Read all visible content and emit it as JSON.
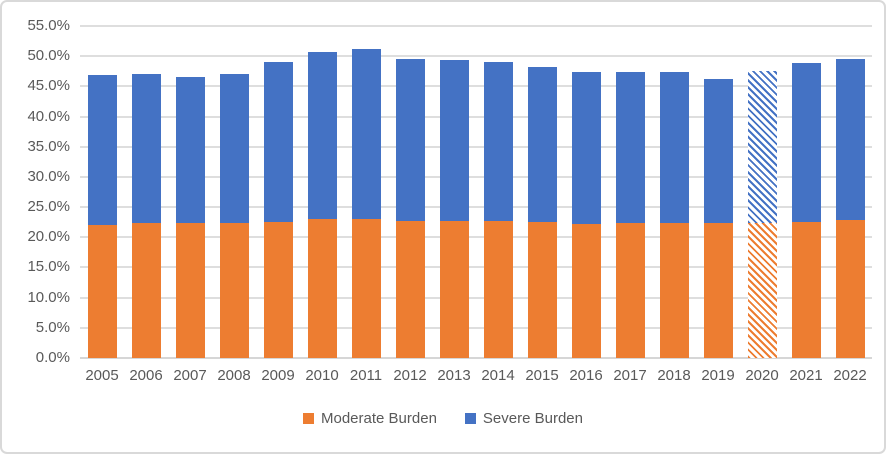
{
  "chart_data": {
    "type": "bar",
    "stacked": true,
    "title": "",
    "xlabel": "",
    "ylabel": "",
    "ylim": [
      0,
      55
    ],
    "y_tick_step": 5,
    "y_tick_labels": [
      "0.0%",
      "5.0%",
      "10.0%",
      "15.0%",
      "20.0%",
      "25.0%",
      "30.0%",
      "35.0%",
      "40.0%",
      "45.0%",
      "50.0%",
      "55.0%"
    ],
    "grid": true,
    "legend_position": "bottom",
    "categories": [
      "2005",
      "2006",
      "2007",
      "2008",
      "2009",
      "2010",
      "2011",
      "2012",
      "2013",
      "2014",
      "2015",
      "2016",
      "2017",
      "2018",
      "2019",
      "2020",
      "2021",
      "2022"
    ],
    "series": [
      {
        "name": "Moderate Burden",
        "color": "#ED7D31",
        "values": [
          22.1,
          22.3,
          22.4,
          22.4,
          22.6,
          23.0,
          23.1,
          22.7,
          22.7,
          22.7,
          22.6,
          22.2,
          22.4,
          22.4,
          22.3,
          22.4,
          22.5,
          22.8
        ]
      },
      {
        "name": "Severe Burden",
        "color": "#4472C4",
        "values": [
          24.8,
          24.8,
          24.2,
          24.7,
          26.4,
          27.7,
          28.1,
          26.9,
          26.7,
          26.4,
          25.6,
          25.2,
          25.0,
          25.0,
          23.9,
          25.1,
          26.4,
          26.8
        ]
      }
    ],
    "hatched_categories": [
      "2020"
    ]
  },
  "legend": {
    "items": [
      {
        "label": "Moderate Burden",
        "color": "#ED7D31"
      },
      {
        "label": "Severe Burden",
        "color": "#4472C4"
      }
    ]
  },
  "colors": {
    "background": "#FFFFFF",
    "frame_border": "#D9D9D9",
    "gridline": "#DEDEDE",
    "axis_text": "#595959"
  }
}
